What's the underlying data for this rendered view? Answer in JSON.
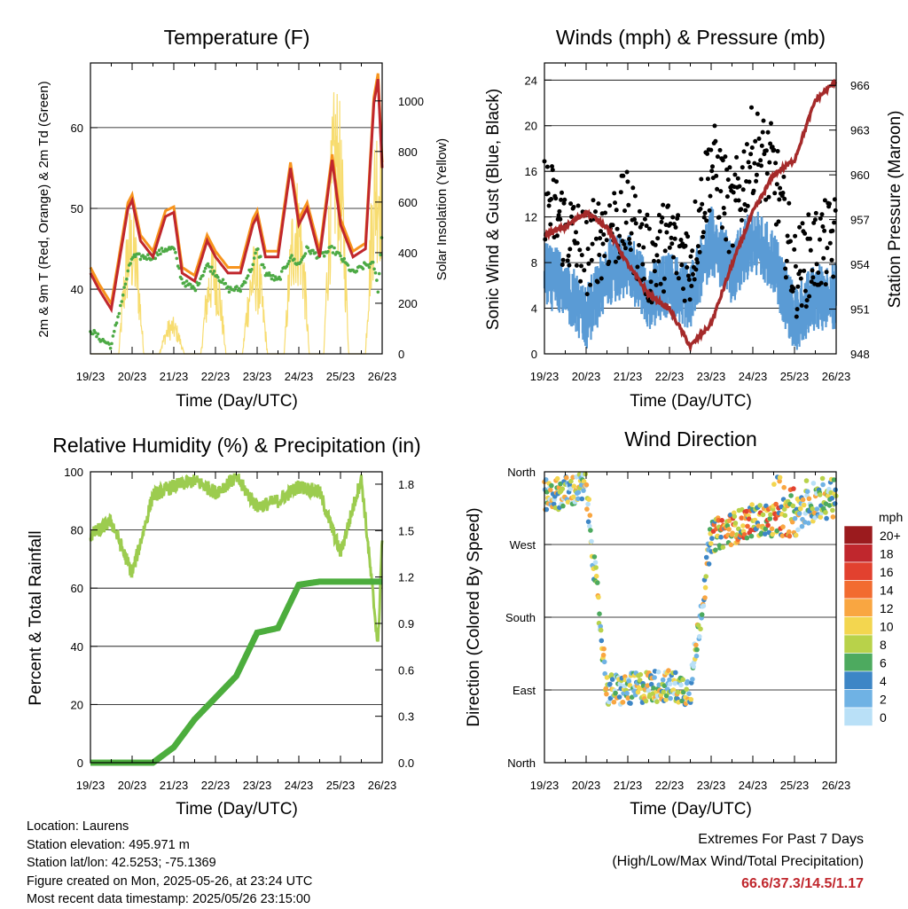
{
  "x_ticks": [
    "19/23",
    "20/23",
    "21/23",
    "22/23",
    "23/23",
    "24/23",
    "25/23",
    "26/23"
  ],
  "charts": {
    "temperature": {
      "title": "Temperature (F)",
      "xlabel": "Time (Day/UTC)",
      "ylabel_left": "2m & 9m T (Red, Orange) & 2m Td (Green)",
      "ylabel_right": "Solar Insolation (Yellow)",
      "left_ticks": [
        "40",
        "50",
        "60"
      ],
      "right_ticks": [
        "0",
        "200",
        "400",
        "600",
        "800",
        "1000"
      ]
    },
    "winds": {
      "title": "Winds (mph) & Pressure (mb)",
      "xlabel": "Time (Day/UTC)",
      "ylabel_left": "Sonic Wind & Gust (Blue, Black)",
      "ylabel_right": "Station Pressure (Maroon)",
      "left_ticks": [
        "0",
        "4",
        "8",
        "12",
        "16",
        "20",
        "24"
      ],
      "right_ticks": [
        "948",
        "951",
        "954",
        "957",
        "960",
        "963",
        "966"
      ]
    },
    "humidity": {
      "title": "Relative Humidity (%) & Precipitation (in)",
      "xlabel": "Time (Day/UTC)",
      "ylabel_left": "Percent & Total Rainfall",
      "left_ticks": [
        "0",
        "20",
        "40",
        "60",
        "80",
        "100"
      ],
      "right_ticks": [
        "0.0",
        "0.3",
        "0.6",
        "0.9",
        "1.2",
        "1.5",
        "1.8"
      ]
    },
    "direction": {
      "title": "Wind Direction",
      "xlabel": "Time (Day/UTC)",
      "ylabel_left": "Direction (Colored By Speed)",
      "left_ticks": [
        "North",
        "East",
        "South",
        "West",
        "North"
      ],
      "legend_title": "mph",
      "legend_labels": [
        "20+",
        "18",
        "16",
        "14",
        "12",
        "10",
        "8",
        "6",
        "4",
        "2",
        "0"
      ],
      "legend_colors": [
        "#9b1b1e",
        "#c0272d",
        "#e2412f",
        "#f26b30",
        "#f9a641",
        "#f3d64f",
        "#b8d24a",
        "#4daa5f",
        "#3d86c6",
        "#6fb2e4",
        "#b9e0f7"
      ]
    }
  },
  "footer": {
    "location": "Location: Laurens",
    "elevation": "Station elevation: 495.971 m",
    "latlon": "Station lat/lon: 42.5253; -75.1369",
    "created": "Figure created on Mon, 2025-05-26, at 23:24 UTC",
    "recent": "Most recent data timestamp: 2025/05/26 23:15:00"
  },
  "extremes": {
    "title": "Extremes For Past 7 Days",
    "subtitle": "(High/Low/Max Wind/Total Precipitation)",
    "values": "66.6/37.3/14.5/1.17"
  },
  "colors": {
    "temp_red": "#c0272d",
    "temp_orange": "#f7941d",
    "dewpoint_green": "#4daa45",
    "solar_yellow": "#f7dc6f",
    "wind_blue": "#5a9bd5",
    "gust_black": "#000000",
    "pressure_maroon": "#a52a2a",
    "rh_lightgreen": "#9ccc4f",
    "precip_green": "#4cad3d"
  },
  "chart_data": [
    {
      "type": "line",
      "title": "Temperature (F)",
      "xlabel": "Time (Day/UTC)",
      "x": [
        0,
        0.2,
        0.5,
        0.9,
        1.0,
        1.2,
        1.5,
        1.8,
        2.0,
        2.2,
        2.5,
        2.8,
        3.0,
        3.3,
        3.6,
        3.9,
        4.0,
        4.2,
        4.5,
        4.8,
        5.0,
        5.2,
        5.5,
        5.8,
        6.0,
        6.3,
        6.6,
        6.8,
        6.9,
        7.0
      ],
      "series": [
        {
          "name": "2m & 9m T",
          "values": [
            42,
            40,
            37.5,
            50,
            51,
            46,
            44,
            49,
            49.5,
            42,
            41,
            46,
            44,
            42,
            42,
            48,
            49,
            44,
            44,
            55,
            48,
            50,
            44,
            56,
            48,
            44,
            45,
            63,
            66,
            55
          ]
        },
        {
          "name": "2m Td",
          "values": [
            35,
            34,
            33,
            42,
            44,
            44,
            44,
            45,
            45,
            41,
            40,
            43,
            42,
            40,
            40,
            43,
            45,
            42,
            41,
            44,
            43,
            45,
            44,
            45,
            44,
            42,
            43,
            43,
            40,
            47
          ]
        }
      ],
      "ylim": [
        32,
        68
      ]
    },
    {
      "type": "scatter",
      "title": "Winds (mph) & Pressure (mb)",
      "xlabel": "Time (Day/UTC)",
      "x": [
        0,
        0.5,
        1.0,
        1.5,
        2.0,
        2.5,
        3.0,
        3.5,
        4.0,
        4.5,
        5.0,
        5.5,
        6.0,
        6.5,
        7.0
      ],
      "series": [
        {
          "name": "Gust",
          "values": [
            14,
            11,
            9,
            11,
            12,
            8,
            10,
            8,
            17,
            12,
            18,
            16,
            7,
            9,
            10
          ]
        },
        {
          "name": "Sonic Wind",
          "values": [
            7,
            6,
            3,
            7,
            8,
            5,
            6,
            5,
            10,
            7,
            10,
            8,
            3,
            5,
            5
          ]
        },
        {
          "name": "Station Pressure",
          "values": [
            956,
            956.5,
            957.5,
            956.5,
            954,
            952,
            951,
            948.5,
            950,
            954,
            957.5,
            960,
            961,
            965,
            966.3
          ]
        }
      ],
      "ylim": [
        0,
        25
      ],
      "y2lim": [
        948,
        967.5
      ]
    },
    {
      "type": "line",
      "title": "Relative Humidity (%) & Precipitation (in)",
      "xlabel": "Time (Day/UTC)",
      "x": [
        0,
        0.5,
        1.0,
        1.5,
        2.0,
        2.5,
        3.0,
        3.5,
        4.0,
        4.5,
        5.0,
        5.5,
        6.0,
        6.5,
        6.9,
        7.0
      ],
      "series": [
        {
          "name": "Relative Humidity",
          "values": [
            78,
            83,
            65,
            92,
            95,
            97,
            93,
            98,
            88,
            90,
            95,
            93,
            72,
            98,
            40,
            78
          ]
        },
        {
          "name": "Total Precipitation",
          "values": [
            0,
            0,
            0,
            0,
            0.1,
            0.28,
            0.42,
            0.56,
            0.84,
            0.87,
            1.15,
            1.17,
            1.17,
            1.17,
            1.17,
            1.17
          ]
        }
      ],
      "ylim": [
        0,
        100
      ],
      "y2lim": [
        0,
        1.88
      ]
    },
    {
      "type": "scatter",
      "title": "Wind Direction",
      "xlabel": "Time (Day/UTC)",
      "x": [
        0,
        0.5,
        1.0,
        1.5,
        2.0,
        2.5,
        3.0,
        3.5,
        4.0,
        4.5,
        5.0,
        5.5,
        6.0,
        6.5,
        7.0
      ],
      "series": [
        {
          "name": "Direction (deg)",
          "values": [
            330,
            335,
            340,
            90,
            90,
            95,
            95,
            90,
            280,
            290,
            300,
            300,
            300,
            320,
            320
          ]
        }
      ]
    }
  ]
}
